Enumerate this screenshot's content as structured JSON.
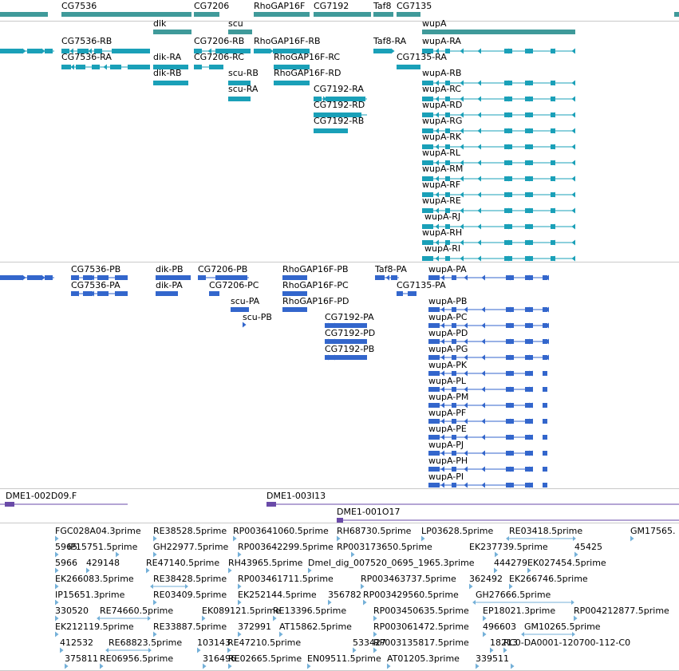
{
  "colors": {
    "gene": "#3f9a9a",
    "transcript": "#1aa0b8",
    "protein": "#3366cc",
    "clone": "#6a4aa8",
    "est": "#74b0d8",
    "separator": "#c9c9c9"
  },
  "genes": {
    "labels": [
      "CG7536",
      "dik",
      "CG7206",
      "scu",
      "RhoGAP16F",
      "CG7192",
      "Taf8",
      "CG7135",
      "wupA"
    ]
  },
  "transcripts": {
    "labels": [
      "CG7536-RB",
      "CG7536-RA",
      "dik-RA",
      "dik-RB",
      "CG7206-RB",
      "CG7206-RC",
      "scu-RB",
      "scu-RA",
      "RhoGAP16F-RB",
      "RhoGAP16F-RC",
      "RhoGAP16F-RD",
      "CG7192-RA",
      "CG7192-RD",
      "CG7192-RB",
      "Taf8-RA",
      "CG7135-RA",
      "wupA-RA",
      "wupA-RB",
      "wupA-RC",
      "wupA-RD",
      "wupA-RG",
      "wupA-RK",
      "wupA-RL",
      "wupA-RM",
      "wupA-RF",
      "wupA-RE",
      "wupA-RJ",
      "wupA-RH",
      "wupA-RI"
    ]
  },
  "proteins": {
    "labels": [
      "CG7536-PB",
      "CG7536-PA",
      "dik-PB",
      "dik-PA",
      "CG7206-PB",
      "CG7206-PC",
      "scu-PA",
      "scu-PB",
      "RhoGAP16F-PB",
      "RhoGAP16F-PC",
      "RhoGAP16F-PD",
      "CG7192-PA",
      "CG7192-PD",
      "CG7192-PB",
      "Taf8-PA",
      "CG7135-PA",
      "wupA-PA",
      "wupA-PB",
      "wupA-PC",
      "wupA-PD",
      "wupA-PG",
      "wupA-PK",
      "wupA-PL",
      "wupA-PM",
      "wupA-PF",
      "wupA-PE",
      "wupA-PJ",
      "wupA-PH",
      "wupA-PI"
    ]
  },
  "clones": {
    "labels": [
      "DME1-002D09.F",
      "DME1-003I13",
      "DME1-001O17"
    ]
  },
  "ests": {
    "labels": [
      "FGC028A04.3prime",
      "RE38528.5prime",
      "RP003641060.5prime",
      "RH68730.5prime",
      "LP03628.5prime",
      "RE03418.5prime",
      "GM17565.",
      "5965",
      "IP15751.5prime",
      "GH22977.5prime",
      "RP003642299.5prime",
      "RP003173650.5prime",
      "EK237739.5prime",
      "45425",
      "5966",
      "429148",
      "RE47140.5prime",
      "RH43965.5prime",
      "Dmel_dig_007520_0695_1965.3prime",
      "444279",
      "EK027454.5prime",
      "EK266083.5prime",
      "RE38428.5prime",
      "RP003461711.5prime",
      "RP003463737.5prime",
      "362492",
      "EK266746.5prime",
      "IP15651.3prime",
      "RE03409.5prime",
      "EK252144.5prime",
      "356782",
      "RP003429560.5prime",
      "GH27666.5prime",
      "330520",
      "RE74660.5prime",
      "EK089121.5prime",
      "RE13396.5prime",
      "RP003450635.5prime",
      "EP18021.3prime",
      "RP004212877.5prime",
      "EK212119.5prime",
      "RE33887.5prime",
      "372991",
      "AT15862.5prime",
      "RP003061472.5prime",
      "496603",
      "GM10265.5prime",
      "412532",
      "RE68823.5prime",
      "103143",
      "RE47210.5prime",
      "533427",
      "RP003135817.5prime",
      "18213",
      "RC0-DA0001-120700-112-C0",
      "375811",
      "RE06956.5prime",
      "316496",
      "RE02665.5prime",
      "EN09511.5prime",
      "AT01205.3prime",
      "339511"
    ]
  }
}
